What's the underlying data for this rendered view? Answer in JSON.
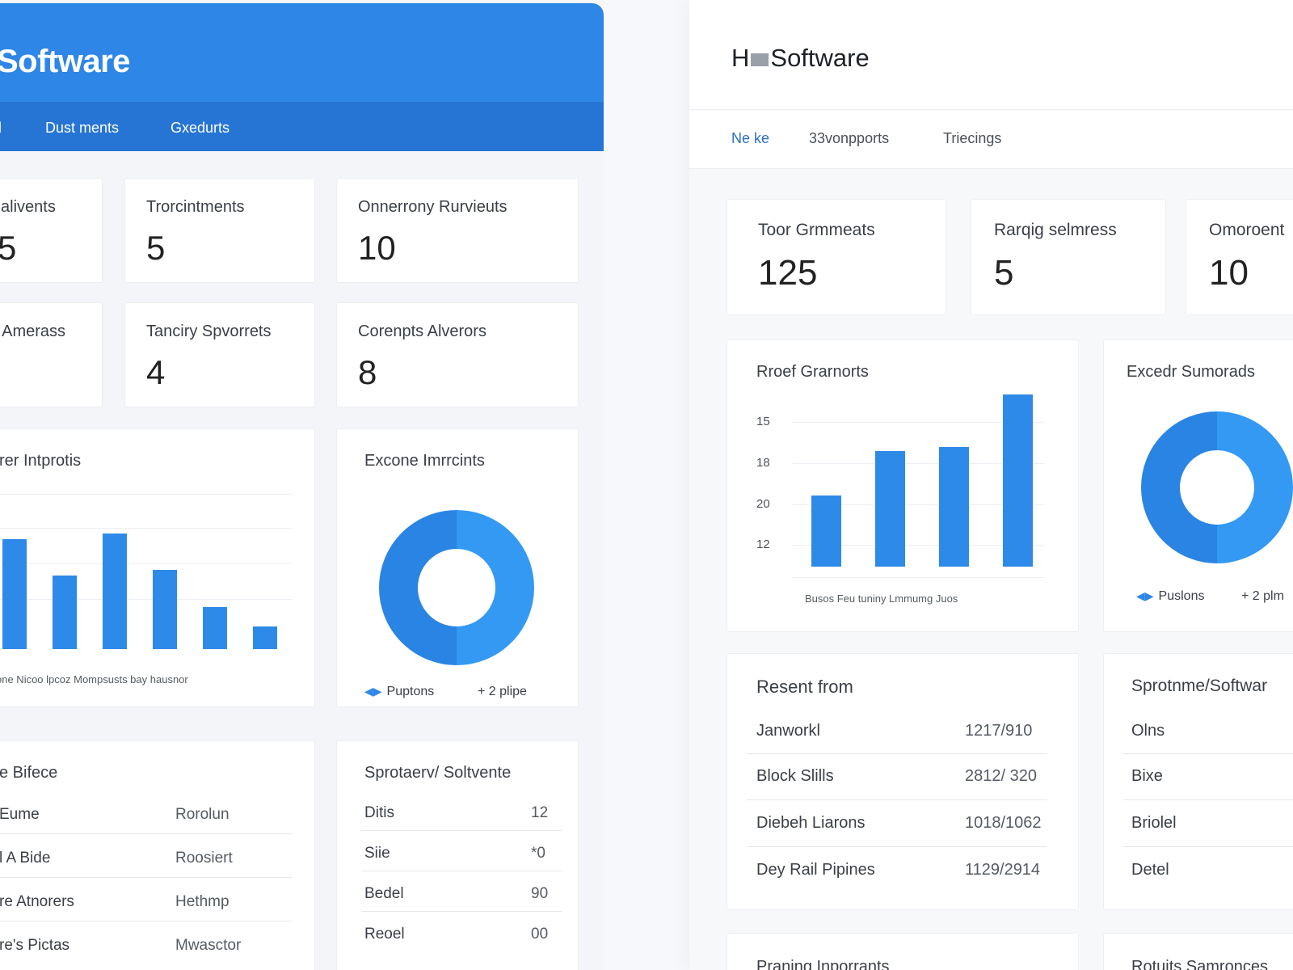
{
  "left": {
    "title": "Software",
    "nav": [
      "l",
      "Dust ments",
      "Gxedurts"
    ],
    "stats": [
      {
        "label": "alivents",
        "value": "5"
      },
      {
        "label": "Trorcintments",
        "value": "5"
      },
      {
        "label": "Onnerrony Rurvieuts",
        "value": "10"
      },
      {
        "label": "› Amerass",
        "value": ""
      },
      {
        "label": "Tanciry Spvorrets",
        "value": "4"
      },
      {
        "label": "Corenpts Alverors",
        "value": "8"
      }
    ],
    "bar_card": {
      "title": "rer Intprotis",
      "xlabels": "one  Nicoo lpcoz Mompsusts   bay hausnor"
    },
    "donut_card": {
      "title": "Excone Imrrcints",
      "legend_left": "Puptons",
      "legend_right": "+ 2 plipe"
    },
    "list_card": {
      "title": "e Bifece",
      "rows": [
        {
          "name": "Eume",
          "value": "Rorolun"
        },
        {
          "name": "l A Bide",
          "value": "Roosiert"
        },
        {
          "name": "re Atnorers",
          "value": "Hethmp"
        },
        {
          "name": "re's Pictas",
          "value": "Mwasctor"
        }
      ]
    },
    "small_list_card": {
      "title": "Sprotaerv/ Soltvente",
      "rows": [
        {
          "name": "Ditis",
          "value": "12"
        },
        {
          "name": "Siie",
          "value": "*0"
        },
        {
          "name": "Bedel",
          "value": "90"
        },
        {
          "name": "Reoel",
          "value": "00"
        }
      ]
    }
  },
  "right": {
    "logo_prefix": "H",
    "logo_text": "Software",
    "nav": [
      "Ne ke",
      "33vonpports",
      "Triecings"
    ],
    "stats": [
      {
        "label": "Toor Grmmeats",
        "value": "125"
      },
      {
        "label": "Rarqig selmress",
        "value": "5"
      },
      {
        "label": "Omoroent",
        "value": "10"
      }
    ],
    "bar_card": {
      "title": "Rroef Grarnorts",
      "xlabels": "Busos  Feu tuniny Lmmumg    Juos"
    },
    "donut_card": {
      "title": "Excedr Sumorads",
      "legend_left": "Puslons",
      "legend_right": "+ 2 plm"
    },
    "list_card": {
      "title": "Resent from",
      "rows": [
        {
          "name": "Janworkl",
          "value": "1217/910"
        },
        {
          "name": "Block Slills",
          "value": "2812/ 320"
        },
        {
          "name": "Diebeh Liarons",
          "value": "1018/1062"
        },
        {
          "name": "Dey Rail Pipines",
          "value": "1129/2914"
        }
      ]
    },
    "side_list_card": {
      "title": "Sprotnme/Softwar",
      "rows": [
        "Olns",
        "Bixe",
        "Briolel",
        "Detel"
      ]
    },
    "bottom_titles": [
      "Praning Inporrants",
      "Rotuits Samronces"
    ]
  },
  "chart_data": [
    {
      "type": "bar",
      "values": [
        78,
        52,
        82,
        56,
        30,
        16
      ],
      "xlabels": "one  Nicoo lpcoz Mompsusts   bay hausnor",
      "color": "#2e8ae9"
    },
    {
      "type": "pie",
      "segments": [
        {
          "label": "Puptons",
          "value": 50
        },
        {
          "label": "+ 2 plipe",
          "value": 50
        }
      ],
      "colors": [
        "#3399f3",
        "#2a84e3"
      ]
    },
    {
      "type": "bar",
      "categories": [
        "Busos",
        "Feu tuniny",
        "Lmmumg",
        "Juos"
      ],
      "yticks": [
        "15",
        "18",
        "20",
        "12"
      ],
      "values": [
        8.8,
        14.3,
        14.8,
        21.3
      ],
      "ylim": [
        0,
        24
      ],
      "color": "#2e8ae9"
    },
    {
      "type": "pie",
      "segments": [
        {
          "label": "Puslons",
          "value": 50
        },
        {
          "label": "+ 2 plm",
          "value": 50
        }
      ],
      "colors": [
        "#3399f3",
        "#2a84e3"
      ]
    }
  ]
}
